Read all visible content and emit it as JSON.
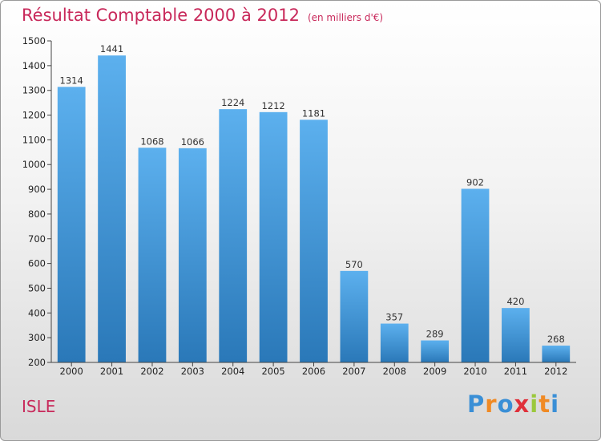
{
  "chart_data": {
    "type": "bar",
    "title": "Résultat Comptable 2000 à 2012",
    "subtitle": "(en milliers d'€)",
    "categories": [
      "2000",
      "2001",
      "2002",
      "2003",
      "2004",
      "2005",
      "2006",
      "2007",
      "2008",
      "2009",
      "2010",
      "2011",
      "2012"
    ],
    "values": [
      1314,
      1441,
      1068,
      1066,
      1224,
      1212,
      1181,
      570,
      357,
      289,
      902,
      420,
      268
    ],
    "ylim": [
      200,
      1500
    ],
    "yticks": [
      200,
      300,
      400,
      500,
      600,
      700,
      800,
      900,
      1000,
      1100,
      1200,
      1300,
      1400,
      1500
    ],
    "grid": false,
    "bar_color": "#4a9be0",
    "bar_color_top": "#5cb0ee",
    "bar_color_bottom": "#2a78b8"
  },
  "commune": "ISLE",
  "logo": {
    "letters": [
      "P",
      "r",
      "o",
      "x",
      "i",
      "t",
      "i"
    ],
    "colors": [
      "#3a8fd6",
      "#f08a24",
      "#3a8fd6",
      "#e0303a",
      "#9bc83c",
      "#f08a24",
      "#3a8fd6"
    ]
  }
}
